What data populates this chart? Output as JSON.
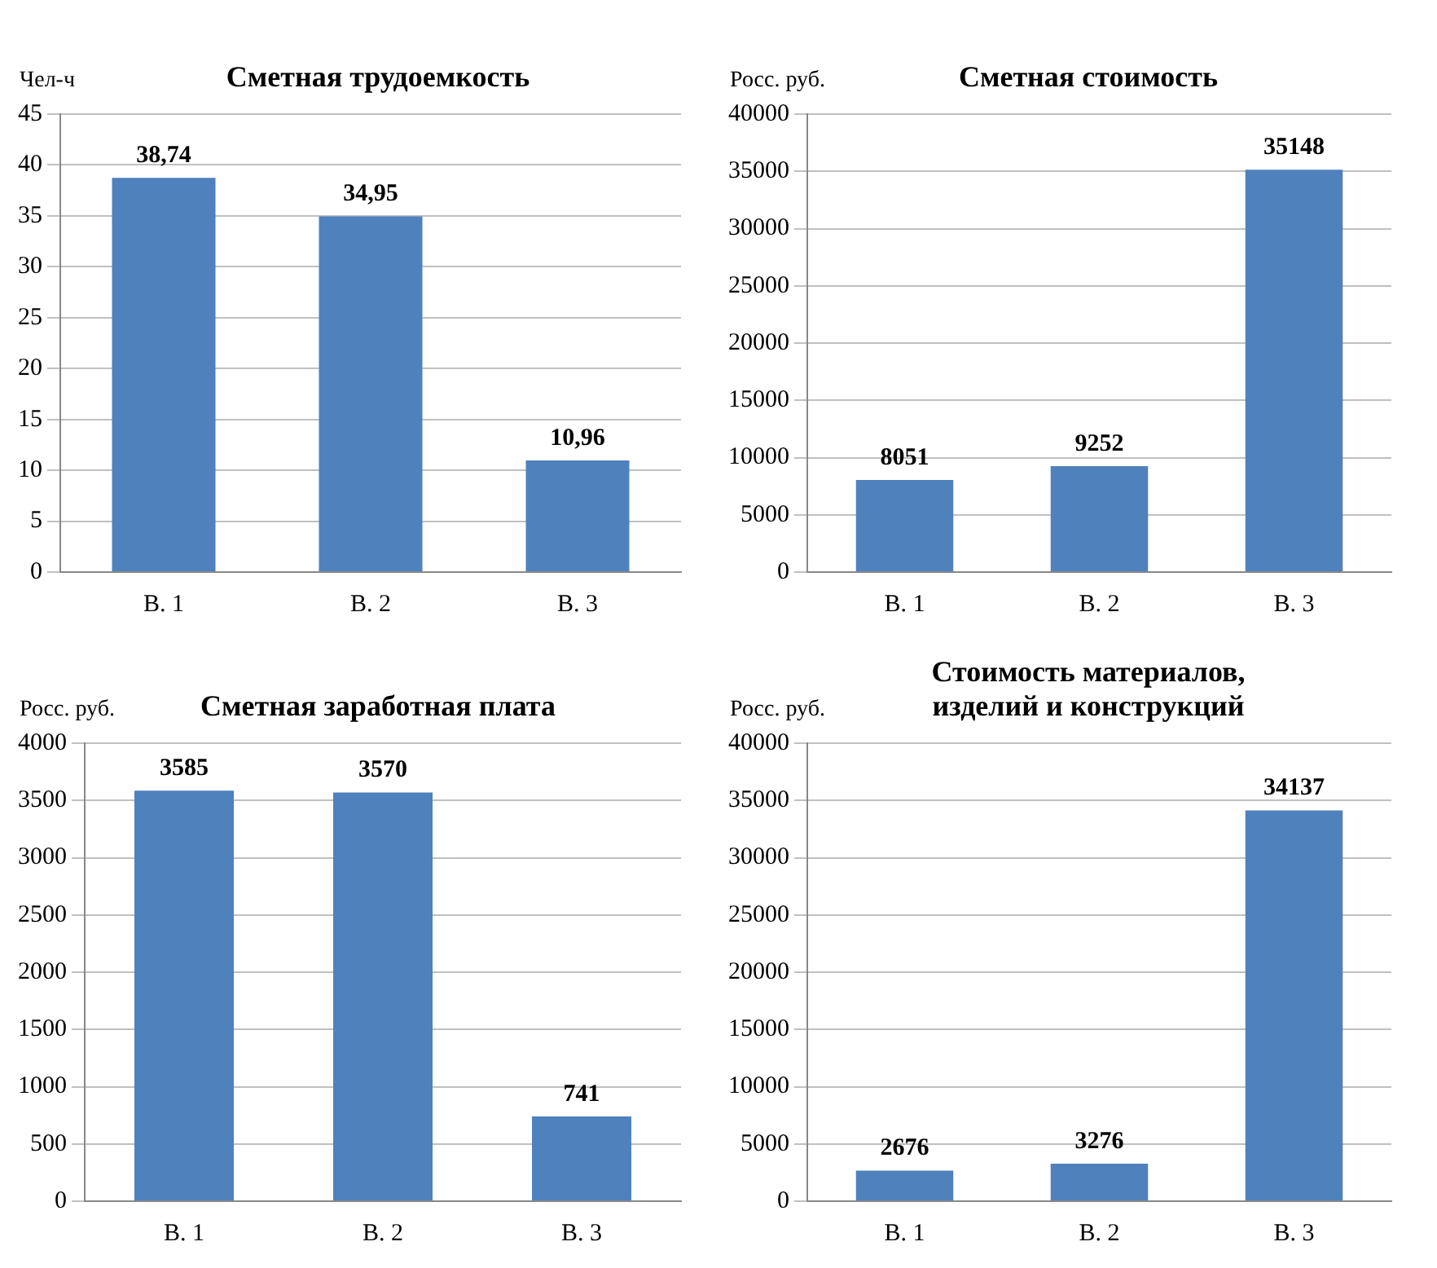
{
  "chart_data": [
    {
      "type": "bar",
      "title": "Сметная трудоемкость",
      "ylabel": "Чел-ч",
      "categories": [
        "В. 1",
        "В. 2",
        "В. 3"
      ],
      "values": [
        38.74,
        34.95,
        10.96
      ],
      "value_labels": [
        "38,74",
        "34,95",
        "10,96"
      ],
      "color": "#4f81bd",
      "ylim": [
        0,
        45
      ],
      "yticks": [
        0,
        5,
        10,
        15,
        20,
        25,
        30,
        35,
        40,
        45
      ],
      "grid": "y",
      "legend": false
    },
    {
      "type": "bar",
      "title": "Сметная стоимость",
      "ylabel": "Росс. руб.",
      "categories": [
        "В. 1",
        "В. 2",
        "В. 3"
      ],
      "values": [
        8051,
        9252,
        35148
      ],
      "data_labels": true,
      "color": "#4f81bd",
      "ylim": [
        0,
        40000
      ],
      "yticks": [
        0,
        5000,
        10000,
        15000,
        20000,
        25000,
        30000,
        35000,
        40000
      ],
      "grid": "y",
      "legend": false
    },
    {
      "type": "bar",
      "title": "Сметная заработная плата",
      "ylabel": "Росс. руб.",
      "categories": [
        "В. 1",
        "В. 2",
        "В. 3"
      ],
      "values": [
        3585,
        3570,
        741
      ],
      "data_labels": true,
      "color": "#4f81bd",
      "ylim": [
        0,
        4000
      ],
      "yticks": [
        0,
        500,
        1000,
        1500,
        2000,
        2500,
        3000,
        3500,
        4000
      ],
      "grid": "y",
      "legend": false
    },
    {
      "type": "bar",
      "title": "Стоимость материалов, изделий и конструкций",
      "ylabel": "Росс. руб.",
      "categories": [
        "В. 1",
        "В. 2",
        "В. 3"
      ],
      "values": [
        2676,
        3276,
        34137
      ],
      "data_labels": true,
      "color": "#4f81bd",
      "ylim": [
        0,
        40000
      ],
      "yticks": [
        0,
        5000,
        10000,
        15000,
        20000,
        25000,
        30000,
        35000,
        40000
      ],
      "grid": "y",
      "legend": false
    }
  ]
}
